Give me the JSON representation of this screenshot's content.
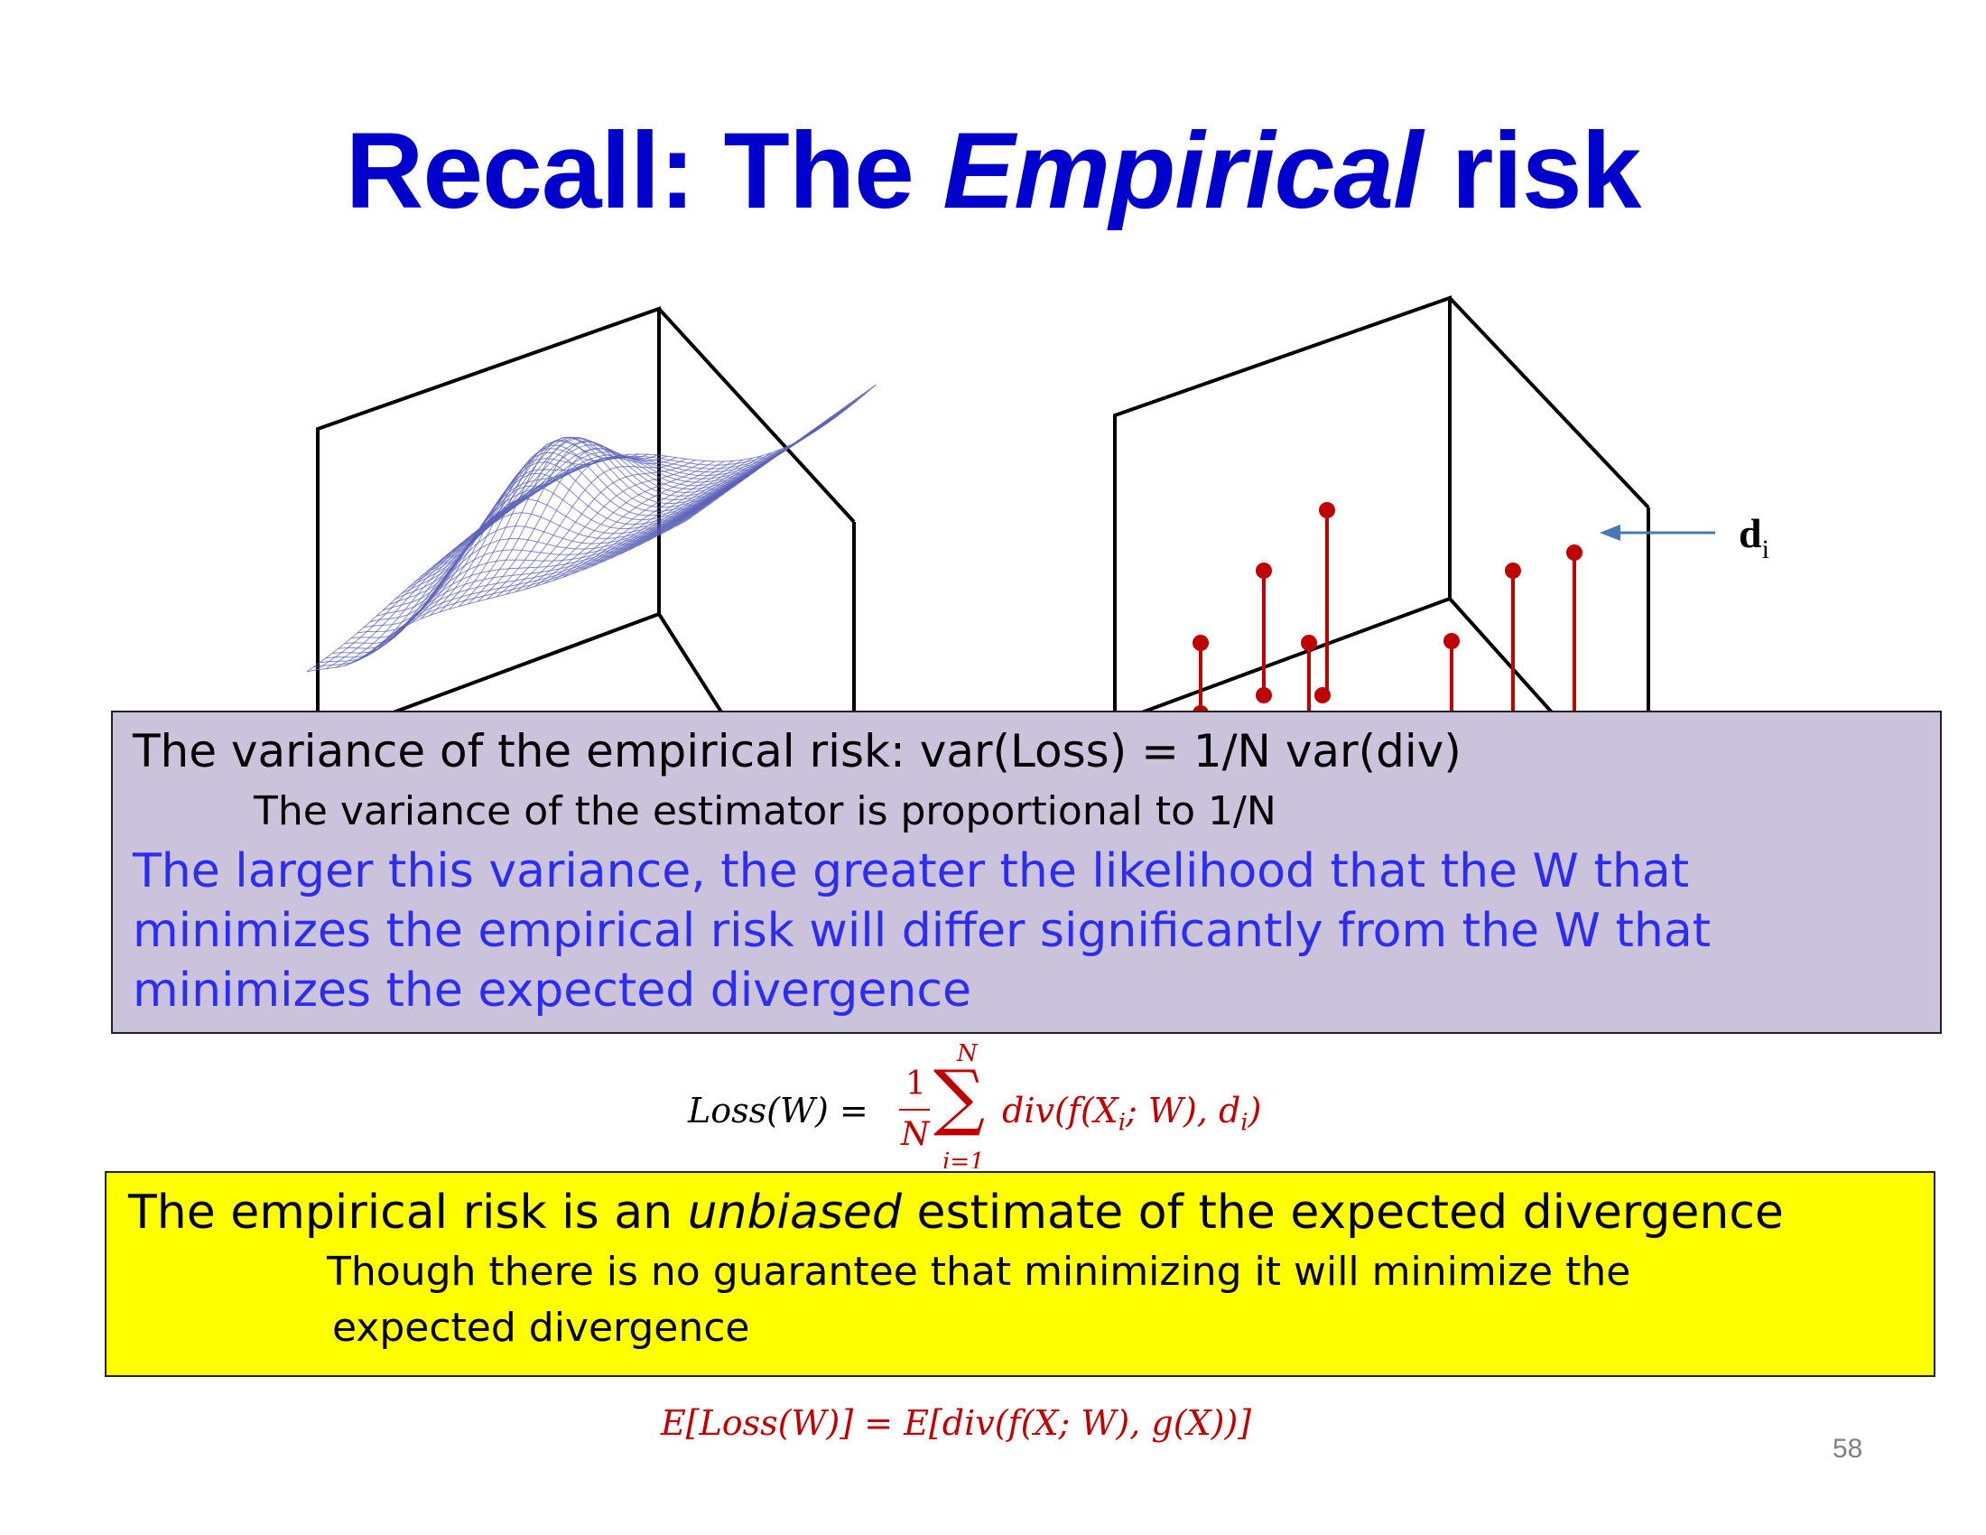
{
  "slide": {
    "title_part1": "Recall: The ",
    "title_italic": "Empirical",
    "title_part2": " risk",
    "page_number": "58"
  },
  "figure": {
    "label_d": "d",
    "label_d_sub": "i",
    "colors": {
      "surface": "#5b62b8",
      "points": "#c00000",
      "arrow": "#4a78b5",
      "box_edges": "#000000"
    }
  },
  "equations": {
    "loss_lhs": "Loss(W) =",
    "loss_frac_num": "1",
    "loss_frac_den": "N",
    "loss_sum_upper": "N",
    "loss_sum_lower": "i=1",
    "loss_rhs": "div(f(X",
    "loss_rhs_sub_i": "i",
    "loss_rhs_mid": "; W), d",
    "loss_rhs_sub_i2": "i",
    "loss_rhs_end": ")",
    "expected": "E[Loss(W)] = E[div(f(X; W), g(X))]"
  },
  "purple_box": {
    "line1": "The variance of the empirical risk: var(Loss) = 1/N var(div)",
    "line2": "The variance of the estimator is proportional to 1/N",
    "line3": "The larger this variance, the greater the likelihood that the W that",
    "line4": "minimizes the empirical risk will differ significantly from the W that",
    "line5": "minimizes the expected divergence",
    "background": "#cbc2dc"
  },
  "yellow_box": {
    "line1_a": "The empirical risk is an ",
    "line1_italic": "unbiased",
    "line1_b": " estimate of the expected divergence",
    "line2": "Though there is no guarantee that minimizing it will minimize the",
    "line3": "expected divergence",
    "background": "#ffff00"
  }
}
